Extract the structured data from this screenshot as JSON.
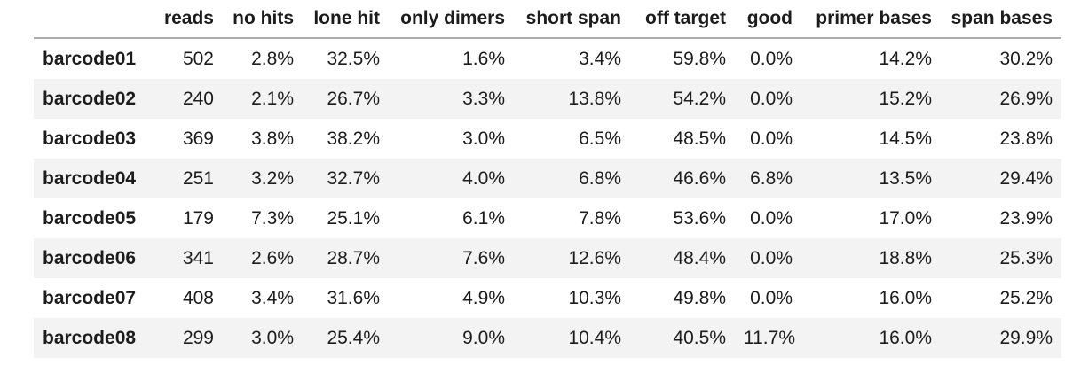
{
  "chart_data": {
    "type": "table",
    "title": "",
    "index_header": "",
    "columns": [
      "reads",
      "no hits",
      "lone hit",
      "only dimers",
      "short span",
      "off target",
      "good",
      "primer bases",
      "span bases"
    ],
    "rows": [
      {
        "label": "barcode01",
        "values": [
          "502",
          "2.8%",
          "32.5%",
          "1.6%",
          "3.4%",
          "59.8%",
          "0.0%",
          "14.2%",
          "30.2%"
        ]
      },
      {
        "label": "barcode02",
        "values": [
          "240",
          "2.1%",
          "26.7%",
          "3.3%",
          "13.8%",
          "54.2%",
          "0.0%",
          "15.2%",
          "26.9%"
        ]
      },
      {
        "label": "barcode03",
        "values": [
          "369",
          "3.8%",
          "38.2%",
          "3.0%",
          "6.5%",
          "48.5%",
          "0.0%",
          "14.5%",
          "23.8%"
        ]
      },
      {
        "label": "barcode04",
        "values": [
          "251",
          "3.2%",
          "32.7%",
          "4.0%",
          "6.8%",
          "46.6%",
          "6.8%",
          "13.5%",
          "29.4%"
        ]
      },
      {
        "label": "barcode05",
        "values": [
          "179",
          "7.3%",
          "25.1%",
          "6.1%",
          "7.8%",
          "53.6%",
          "0.0%",
          "17.0%",
          "23.9%"
        ]
      },
      {
        "label": "barcode06",
        "values": [
          "341",
          "2.6%",
          "28.7%",
          "7.6%",
          "12.6%",
          "48.4%",
          "0.0%",
          "18.8%",
          "25.3%"
        ]
      },
      {
        "label": "barcode07",
        "values": [
          "408",
          "3.4%",
          "31.6%",
          "4.9%",
          "10.3%",
          "49.8%",
          "0.0%",
          "16.0%",
          "25.2%"
        ]
      },
      {
        "label": "barcode08",
        "values": [
          "299",
          "3.0%",
          "25.4%",
          "9.0%",
          "10.4%",
          "40.5%",
          "11.7%",
          "16.0%",
          "29.9%"
        ]
      }
    ],
    "layout": {
      "striped_rows": "even",
      "header_rule": "single underline",
      "numeric_alignment": "right",
      "index_alignment": "left",
      "legend": "none",
      "grid": "off"
    }
  },
  "colors": {
    "stripe": "#f3f3f3",
    "header_border": "#adadad",
    "text": "#1c1c1c",
    "background": "#ffffff"
  }
}
